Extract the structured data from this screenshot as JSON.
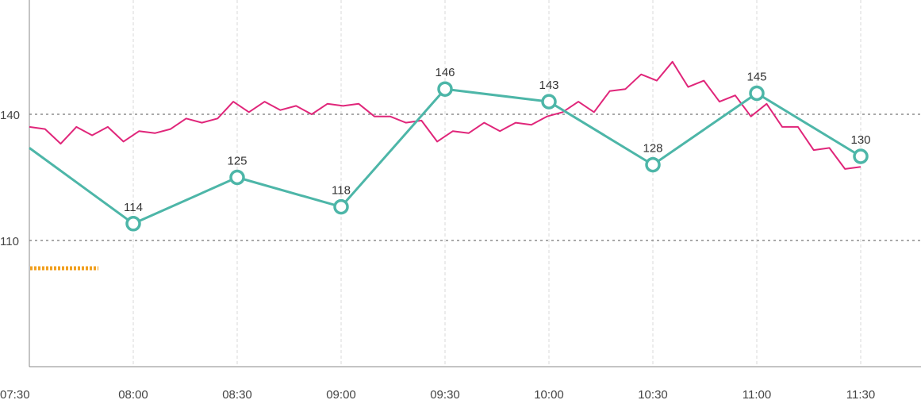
{
  "chart_data": {
    "type": "line",
    "x_ticks": [
      "07:30",
      "08:00",
      "08:30",
      "09:00",
      "09:30",
      "10:00",
      "10:30",
      "11:00",
      "11:30"
    ],
    "y_ticks": [
      "110",
      "140"
    ],
    "reference_lines": [
      110,
      140
    ],
    "grid": "vertical dashed at each x tick",
    "series": [
      {
        "color": "#4DB6A8",
        "marker": "hollow-circle",
        "points": [
          {
            "x": "07:30",
            "y": 132,
            "label": ""
          },
          {
            "x": "08:00",
            "y": 114,
            "label": "114"
          },
          {
            "x": "08:30",
            "y": 125,
            "label": "125"
          },
          {
            "x": "09:00",
            "y": 118,
            "label": "118"
          },
          {
            "x": "09:30",
            "y": 146,
            "label": "146"
          },
          {
            "x": "10:00",
            "y": 143,
            "label": "143"
          },
          {
            "x": "10:30",
            "y": 128,
            "label": "128"
          },
          {
            "x": "11:00",
            "y": 145,
            "label": "145"
          },
          {
            "x": "11:30",
            "y": 130,
            "label": "130"
          }
        ]
      },
      {
        "color": "#E0267A",
        "marker": "none",
        "x_start": "07:30",
        "x_end": "11:30",
        "values": [
          137,
          136.5,
          133,
          137,
          135,
          137,
          133.5,
          136,
          135.5,
          136.5,
          139,
          138,
          139,
          143,
          140.5,
          143,
          141,
          142,
          140,
          142.5,
          142,
          142.5,
          139.5,
          139.5,
          138,
          138.5,
          133.5,
          136,
          135.5,
          138,
          136,
          138,
          137.5,
          139.5,
          140.5,
          143,
          140.5,
          145.5,
          146,
          149.5,
          148,
          152.5,
          146.5,
          148,
          143,
          144.5,
          139.5,
          142.5,
          137,
          137,
          131.5,
          132,
          127,
          127.5
        ]
      }
    ],
    "legend_fragment": {
      "color": "#F0A020"
    }
  }
}
